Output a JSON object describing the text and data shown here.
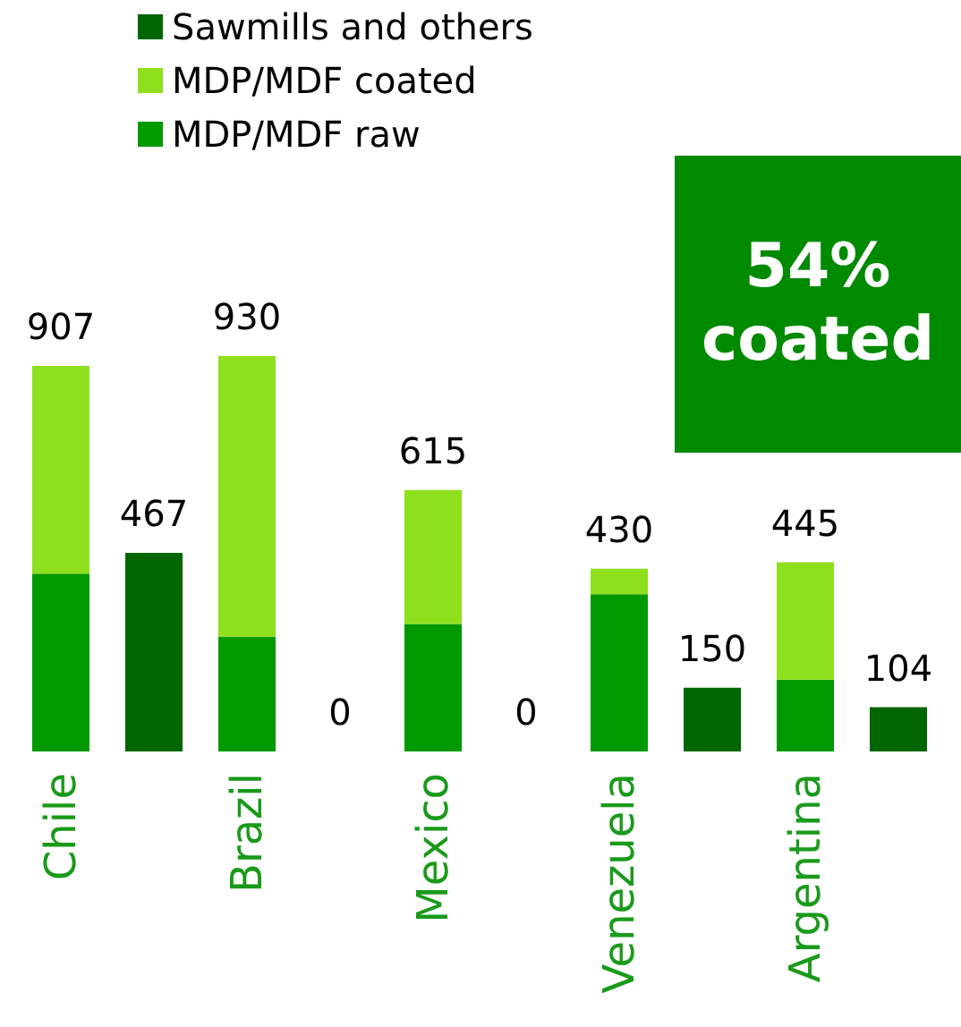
{
  "chart_data": {
    "type": "bar",
    "categories": [
      "Chile",
      null,
      "Brazil",
      null,
      "Mexico",
      null,
      "Venezuela",
      null,
      "Argentina",
      null
    ],
    "stacked": true,
    "legend": "top left",
    "series": [
      {
        "name": "MDP/MDF raw",
        "color": "#009900",
        "values": [
          418,
          null,
          270,
          null,
          300,
          null,
          370,
          null,
          169,
          null
        ]
      },
      {
        "name": "MDP/MDF coated",
        "color": "#8ee01c",
        "values": [
          489,
          null,
          660,
          null,
          315,
          null,
          60,
          null,
          276,
          null
        ]
      },
      {
        "name": "Sawmills and others",
        "color": "#006600",
        "values": [
          null,
          467,
          null,
          0,
          null,
          0,
          null,
          150,
          null,
          104
        ],
        "value_labels": [
          null,
          "467",
          null,
          "0",
          null,
          "0",
          null,
          "150",
          null,
          "104"
        ]
      }
    ],
    "totals": [
      "907",
      null,
      "930",
      null,
      "615",
      null,
      "430",
      null,
      "445",
      null
    ],
    "annotations": [
      "54% coated"
    ]
  }
}
